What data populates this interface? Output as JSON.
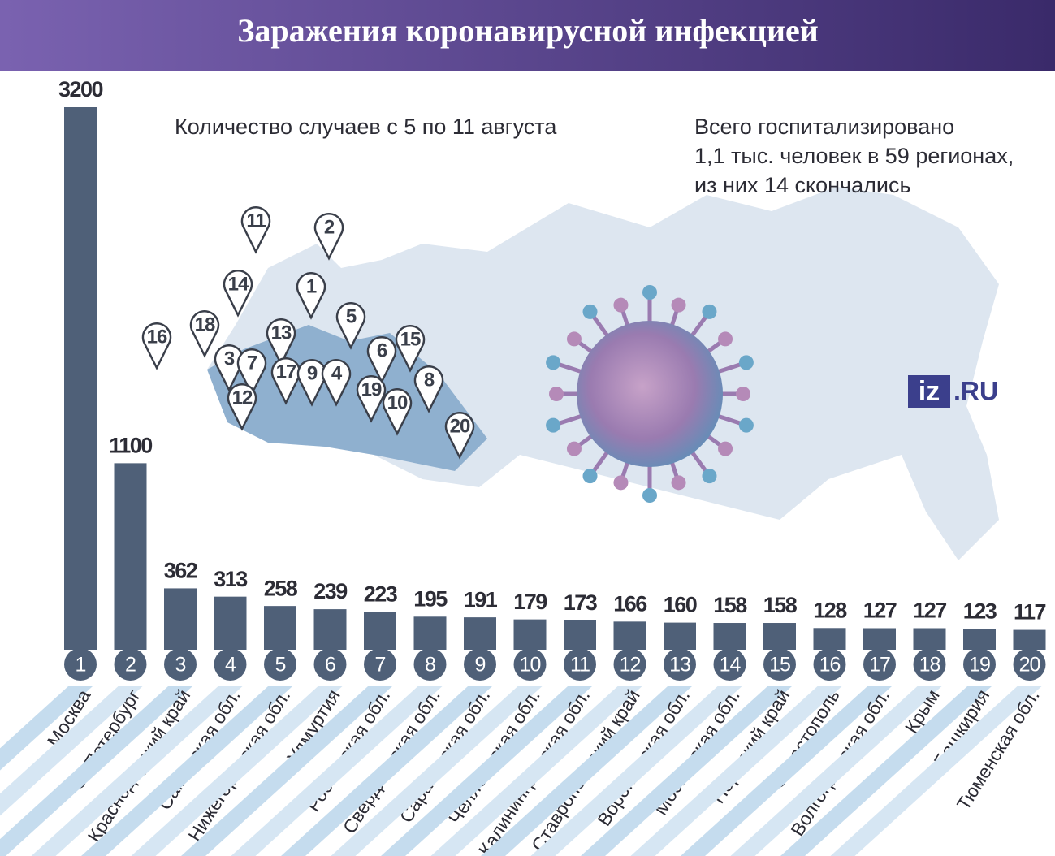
{
  "chart_data": {
    "type": "bar",
    "title": "Заражения коронавирусной инфекцией",
    "subtitle": "Количество случаев с 5 по 11 августа",
    "note": [
      "Всего госпитализировано",
      "1,1 тыс. человек в 59 регионах,",
      "из них 14 скончались"
    ],
    "logo": {
      "main": "iz",
      "suffix": ".RU"
    },
    "categories": [
      "Москва",
      "С.-Петербург",
      "Краснодарский край",
      "Самарская обл.",
      "Нижегородская обл.",
      "Удмуртия",
      "Ростовская обл.",
      "Свердловская обл.",
      "Саратовская обл.",
      "Челябинская обл.",
      "Калининградская обл.",
      "Ставропольский край",
      "Воронежская обл.",
      "Московская обл.",
      "Пермский край",
      "Севастополь",
      "Волгоградская обл.",
      "Крым",
      "Башкирия",
      "Тюменская обл."
    ],
    "ranks": [
      1,
      2,
      3,
      4,
      5,
      6,
      7,
      8,
      9,
      10,
      11,
      12,
      13,
      14,
      15,
      16,
      17,
      18,
      19,
      20
    ],
    "values": [
      3200,
      1100,
      362,
      313,
      258,
      239,
      223,
      195,
      191,
      179,
      173,
      166,
      160,
      158,
      158,
      128,
      127,
      127,
      123,
      117
    ],
    "color": "#4f6078",
    "map_pins": [
      11,
      2,
      14,
      1,
      5,
      13,
      18,
      16,
      6,
      15,
      3,
      7,
      17,
      9,
      4,
      19,
      12,
      10,
      8,
      20
    ]
  }
}
